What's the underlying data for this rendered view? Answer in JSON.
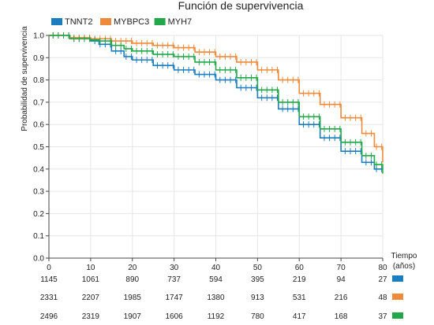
{
  "chart_data": {
    "type": "line",
    "title": "Función de supervivencia",
    "xlabel_line1": "Tiempo",
    "xlabel_line2": "(años)",
    "ylabel": "Probabilidad de supervivencia",
    "xlim": [
      0,
      80
    ],
    "ylim": [
      0,
      1
    ],
    "xticks": [
      0,
      10,
      20,
      30,
      40,
      50,
      60,
      70,
      80
    ],
    "xtick_labels": [
      "0",
      "10",
      "20",
      "30",
      "40",
      "50",
      "60",
      "70",
      "80"
    ],
    "yticks": [
      0,
      0.1,
      0.2,
      0.3,
      0.4,
      0.5,
      0.6,
      0.7,
      0.8,
      0.9,
      1.0
    ],
    "ytick_labels": [
      "0.0",
      "0.1",
      "0.2",
      "0.3",
      "0.4",
      "0.5",
      "0.6",
      "0.7",
      "0.8",
      "0.9",
      "1.0"
    ],
    "grid": true,
    "legend_position": "top-left",
    "series": [
      {
        "name": "TNNT2",
        "color": "#1a7dbf",
        "x": [
          0,
          5,
          10,
          12,
          15,
          18,
          20,
          25,
          30,
          35,
          40,
          45,
          50,
          55,
          60,
          65,
          70,
          75,
          78,
          80
        ],
        "y": [
          1.0,
          0.985,
          0.975,
          0.96,
          0.93,
          0.905,
          0.89,
          0.865,
          0.845,
          0.825,
          0.8,
          0.765,
          0.72,
          0.67,
          0.6,
          0.54,
          0.48,
          0.43,
          0.4,
          0.4
        ]
      },
      {
        "name": "MYBPC3",
        "color": "#ef8a3a",
        "x": [
          0,
          5,
          10,
          15,
          20,
          25,
          30,
          35,
          40,
          45,
          50,
          55,
          60,
          65,
          70,
          75,
          78,
          80
        ],
        "y": [
          1.0,
          0.99,
          0.985,
          0.975,
          0.965,
          0.955,
          0.945,
          0.925,
          0.905,
          0.88,
          0.845,
          0.8,
          0.74,
          0.69,
          0.63,
          0.56,
          0.5,
          0.43
        ]
      },
      {
        "name": "MYH7",
        "color": "#22a84a",
        "x": [
          0,
          5,
          10,
          12,
          15,
          18,
          20,
          25,
          30,
          35,
          40,
          45,
          50,
          55,
          60,
          65,
          70,
          75,
          78,
          80
        ],
        "y": [
          1.0,
          0.985,
          0.98,
          0.975,
          0.955,
          0.94,
          0.93,
          0.915,
          0.905,
          0.88,
          0.845,
          0.81,
          0.755,
          0.7,
          0.635,
          0.58,
          0.52,
          0.46,
          0.42,
          0.38
        ]
      }
    ],
    "risk_table": {
      "times": [
        0,
        10,
        20,
        30,
        40,
        50,
        60,
        70,
        80
      ],
      "rows": [
        {
          "name": "TNNT2",
          "color": "#1a7dbf",
          "values": [
            "1145",
            "1061",
            "890",
            "737",
            "594",
            "395",
            "219",
            "94",
            "27"
          ]
        },
        {
          "name": "MYBPC3",
          "color": "#ef8a3a",
          "values": [
            "2331",
            "2207",
            "1985",
            "1747",
            "1380",
            "913",
            "531",
            "216",
            "48"
          ]
        },
        {
          "name": "MYH7",
          "color": "#22a84a",
          "values": [
            "2496",
            "2319",
            "1907",
            "1606",
            "1192",
            "780",
            "417",
            "168",
            "37"
          ]
        }
      ]
    }
  }
}
